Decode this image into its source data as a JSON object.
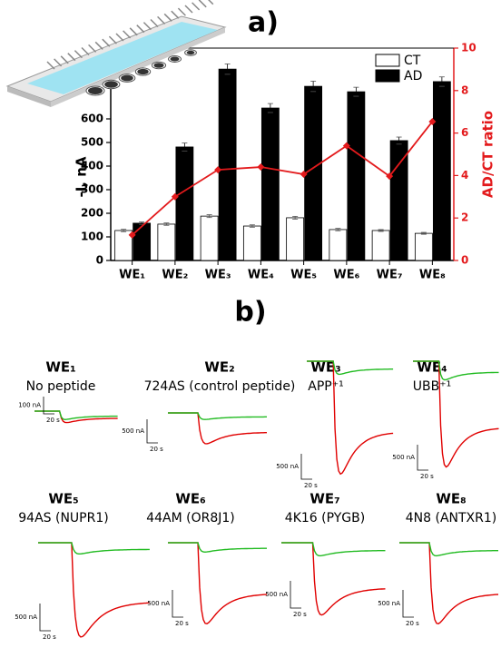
{
  "chart_data": {
    "type": "bar",
    "title": "a)",
    "categories": [
      "WE₁",
      "WE₂",
      "WE₃",
      "WE₄",
      "WE₅",
      "WE₆",
      "WE₇",
      "WE₈"
    ],
    "ylabel": "-I, nA",
    "y2label": "AD/CT ratio",
    "ylim": [
      0,
      900
    ],
    "yticks": [
      0,
      100,
      200,
      300,
      400,
      500,
      600
    ],
    "y2lim": [
      0,
      10
    ],
    "y2ticks": [
      0,
      2,
      4,
      6,
      8,
      10
    ],
    "legend": "upper right",
    "series": [
      {
        "name": "CT",
        "color": "#ffffff",
        "values": [
          127,
          154,
          188,
          146,
          181,
          131,
          127,
          115
        ],
        "errors": [
          5,
          5,
          6,
          5,
          6,
          5,
          4,
          4
        ]
      },
      {
        "name": "AD",
        "color": "#000000",
        "values": [
          158,
          481,
          811,
          646,
          738,
          715,
          508,
          758
        ],
        "errors": [
          5,
          17,
          22,
          19,
          22,
          19,
          15,
          20
        ]
      },
      {
        "name": "AD/CT ratio",
        "type": "line",
        "axis": "y2",
        "color": "#e31a1c",
        "values": [
          1.2,
          3.0,
          4.27,
          4.4,
          4.06,
          5.4,
          3.97,
          6.54
        ]
      }
    ]
  },
  "panel_b": {
    "title": "b)",
    "traces": [
      {
        "title": "WE₁",
        "subtitle": "No peptide",
        "scale_y": "100 nA",
        "scale_x": "20 s"
      },
      {
        "title": "WE₂",
        "subtitle": "724AS (control peptide)",
        "scale_y": "500 nA",
        "scale_x": "20 s"
      },
      {
        "title": "WE₃",
        "subtitle": "APP⁺¹",
        "scale_y": "500 nA",
        "scale_x": "20 s"
      },
      {
        "title": "WE₄",
        "subtitle": "UBB⁺¹",
        "scale_y": "500 nA",
        "scale_x": "20 s"
      },
      {
        "title": "WE₅",
        "subtitle": "94AS (NUPR1)",
        "scale_y": "500 nA",
        "scale_x": "20 s"
      },
      {
        "title": "WE₆",
        "subtitle": "44AM (OR8J1)",
        "scale_y": "500 nA",
        "scale_x": "20 s"
      },
      {
        "title": "WE₇",
        "subtitle": "4K16 (PYGB)",
        "scale_y": "500 nA",
        "scale_x": "20 s"
      },
      {
        "title": "WE₈",
        "subtitle": "4N8 (ANTXR1)",
        "scale_y": "500 nA",
        "scale_x": "20 s"
      }
    ]
  }
}
